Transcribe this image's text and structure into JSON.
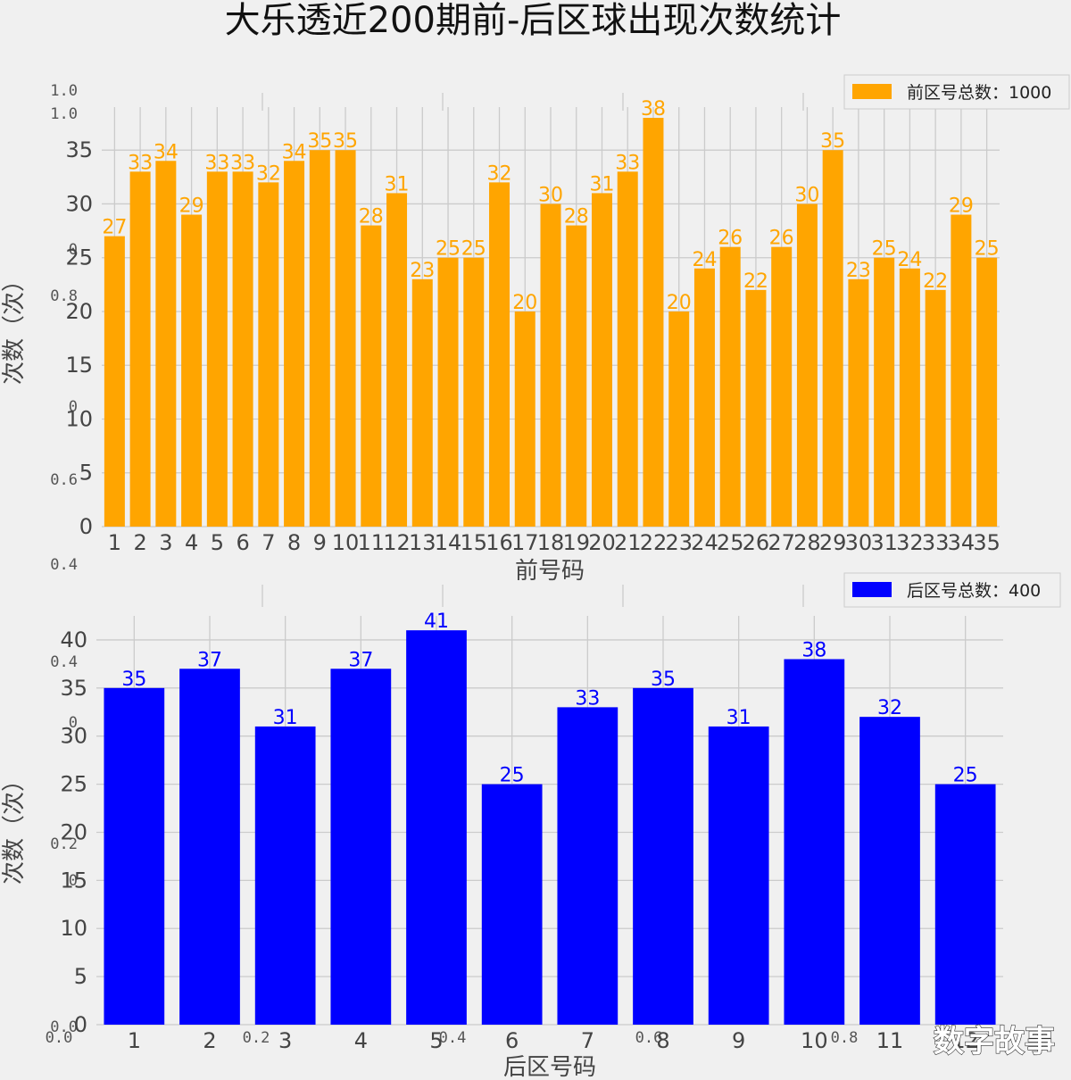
{
  "title": "大乐透近200期前-后区球出现次数统计",
  "watermark": "数字故事",
  "ghost_ticks": {
    "overlay_y": [
      "1.0",
      "1.0",
      "0",
      "0.8",
      "0",
      "0.6",
      "0.4",
      "0.4",
      "0",
      "0.2",
      "0",
      "0.0"
    ],
    "overlay_x": [
      "0.0",
      "0.2",
      "0.4",
      "0.6",
      "0.8"
    ]
  },
  "colors": {
    "front": "#ffa500",
    "back": "#0000ff",
    "grid": "#cbcbcb"
  },
  "chart_data": [
    {
      "type": "bar",
      "categories": [
        "1",
        "2",
        "3",
        "4",
        "5",
        "6",
        "7",
        "8",
        "9",
        "10",
        "11",
        "12",
        "13",
        "14",
        "15",
        "16",
        "17",
        "18",
        "19",
        "20",
        "21",
        "22",
        "23",
        "24",
        "25",
        "26",
        "27",
        "28",
        "29",
        "30",
        "31",
        "32",
        "33",
        "34",
        "35"
      ],
      "series": [
        {
          "name": "前区号总数：1000",
          "values": [
            27,
            33,
            34,
            29,
            33,
            33,
            32,
            34,
            35,
            35,
            28,
            31,
            23,
            25,
            25,
            32,
            20,
            30,
            28,
            31,
            33,
            38,
            20,
            24,
            26,
            22,
            26,
            30,
            35,
            23,
            25,
            24,
            22,
            29,
            25
          ]
        }
      ],
      "xlabel": "前号码",
      "ylabel": "次数（次）",
      "ylim": [
        0,
        39
      ],
      "yticks": [
        0,
        5,
        10,
        15,
        20,
        25,
        30,
        35
      ],
      "grid": true,
      "legend": "top-right"
    },
    {
      "type": "bar",
      "categories": [
        "1",
        "2",
        "3",
        "4",
        "5",
        "6",
        "7",
        "8",
        "9",
        "10",
        "11",
        "12"
      ],
      "series": [
        {
          "name": "后区号总数：400",
          "values": [
            35,
            37,
            31,
            37,
            41,
            25,
            33,
            35,
            31,
            38,
            32,
            25
          ]
        }
      ],
      "xlabel": "后区号码",
      "ylabel": "次数（次）",
      "ylim": [
        0,
        42.5
      ],
      "yticks": [
        0,
        5,
        10,
        15,
        20,
        25,
        30,
        35,
        40
      ],
      "grid": true,
      "legend": "top-right"
    }
  ]
}
